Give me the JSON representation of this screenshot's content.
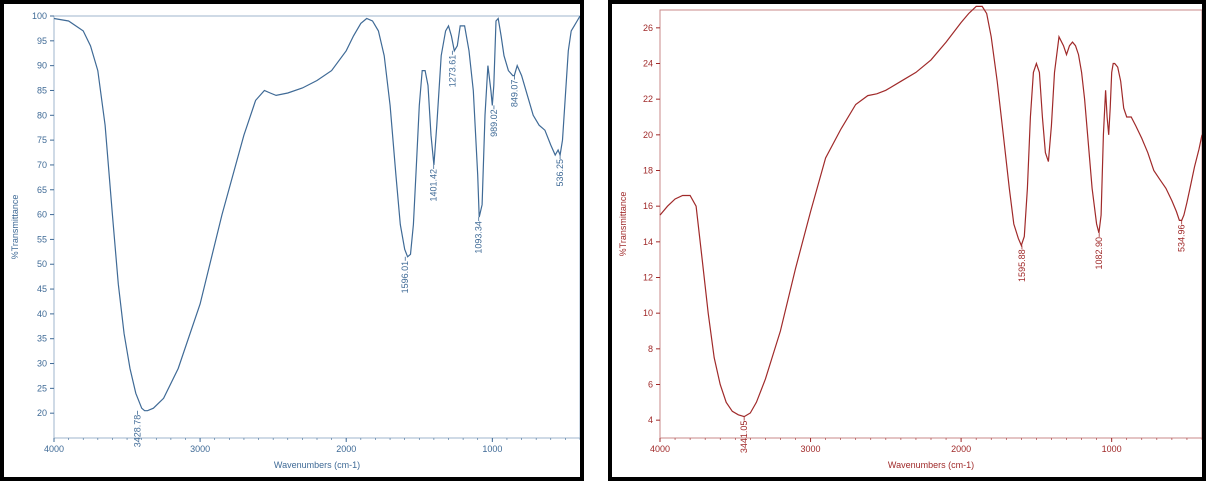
{
  "charts": {
    "chart_data": [
      {
        "type": "line",
        "title": "",
        "xlabel": "Wavenumbers (cm-1)",
        "ylabel": "%Transmittance",
        "xlim": [
          4000,
          400
        ],
        "ylim": [
          15,
          100
        ],
        "x_ticks": [
          4000,
          3000,
          2000,
          1000
        ],
        "y_ticks": [
          20,
          25,
          30,
          35,
          40,
          45,
          50,
          55,
          60,
          65,
          70,
          75,
          80,
          85,
          90,
          95,
          100
        ],
        "color": "#3f6a96",
        "grid": false,
        "peak_labels": [
          "3428.78",
          "1596.01",
          "1401.42",
          "1273.61",
          "1093.34",
          "989.02",
          "849.07",
          "536.25"
        ],
        "peak_x": [
          3428.78,
          1596.01,
          1401.42,
          1273.61,
          1093.34,
          989.02,
          849.07,
          536.25
        ],
        "peak_y": [
          20.5,
          51.5,
          70,
          93,
          59.5,
          82,
          88,
          72
        ],
        "x": [
          4000,
          3900,
          3800,
          3750,
          3700,
          3650,
          3600,
          3560,
          3520,
          3480,
          3440,
          3400,
          3380,
          3360,
          3320,
          3250,
          3150,
          3000,
          2850,
          2700,
          2620,
          2560,
          2520,
          2480,
          2400,
          2300,
          2200,
          2100,
          2000,
          1950,
          1900,
          1860,
          1820,
          1780,
          1740,
          1700,
          1660,
          1630,
          1600,
          1580,
          1560,
          1540,
          1520,
          1500,
          1480,
          1460,
          1440,
          1420,
          1400,
          1380,
          1350,
          1320,
          1300,
          1280,
          1260,
          1240,
          1220,
          1190,
          1160,
          1130,
          1100,
          1090,
          1070,
          1050,
          1030,
          1010,
          1000,
          990,
          975,
          960,
          940,
          920,
          890,
          860,
          850,
          830,
          800,
          760,
          720,
          680,
          640,
          600,
          570,
          550,
          536,
          520,
          500,
          480,
          460,
          440,
          420,
          400
        ],
        "y": [
          99.5,
          99,
          97,
          94,
          89,
          78,
          60,
          46,
          36,
          29,
          24,
          21,
          20.5,
          20.5,
          21,
          23,
          29,
          42,
          60,
          76,
          83,
          85,
          84.5,
          84,
          84.5,
          85.5,
          87,
          89,
          93,
          96,
          98.5,
          99.5,
          99,
          97,
          92,
          82,
          68,
          58,
          53,
          51.5,
          52,
          58,
          70,
          82,
          89,
          89,
          86,
          76,
          70,
          78,
          92,
          97,
          98,
          96,
          93,
          94,
          98,
          98,
          93,
          85,
          68,
          59.5,
          62,
          80,
          90,
          85,
          82,
          86,
          99,
          99.5,
          96,
          92,
          89,
          88,
          88,
          90,
          88,
          84,
          80,
          78,
          77,
          74,
          72,
          73,
          72,
          75,
          84,
          93,
          97,
          98,
          99,
          100
        ]
      },
      {
        "type": "line",
        "title": "",
        "xlabel": "Wavenumbers (cm-1)",
        "ylabel": "%Transmittance",
        "xlim": [
          4000,
          400
        ],
        "ylim": [
          3,
          27
        ],
        "x_ticks": [
          4000,
          3000,
          2000,
          1000
        ],
        "y_ticks": [
          4,
          6,
          8,
          10,
          12,
          14,
          16,
          18,
          20,
          22,
          24,
          26
        ],
        "color": "#a02a2a",
        "grid": false,
        "peak_labels": [
          "3441.05",
          "1595.88",
          "1082.90",
          "534.96"
        ],
        "peak_x": [
          3441.05,
          1595.88,
          1082.9,
          534.96
        ],
        "peak_y": [
          4.2,
          13.8,
          14.5,
          15.2
        ],
        "x": [
          4000,
          3950,
          3900,
          3850,
          3800,
          3760,
          3720,
          3680,
          3640,
          3600,
          3560,
          3520,
          3480,
          3441,
          3400,
          3360,
          3300,
          3200,
          3100,
          3000,
          2900,
          2800,
          2700,
          2620,
          2560,
          2500,
          2400,
          2300,
          2200,
          2100,
          2000,
          1950,
          1900,
          1860,
          1830,
          1800,
          1760,
          1720,
          1680,
          1650,
          1620,
          1600,
          1580,
          1560,
          1540,
          1520,
          1500,
          1480,
          1460,
          1440,
          1420,
          1400,
          1380,
          1350,
          1320,
          1300,
          1280,
          1260,
          1240,
          1220,
          1200,
          1180,
          1160,
          1130,
          1100,
          1085,
          1070,
          1055,
          1040,
          1030,
          1020,
          1010,
          1000,
          990,
          980,
          960,
          940,
          920,
          900,
          870,
          840,
          800,
          760,
          720,
          680,
          640,
          600,
          570,
          550,
          535,
          520,
          500,
          480,
          450,
          420,
          400
        ],
        "y": [
          15.5,
          16,
          16.4,
          16.6,
          16.6,
          16,
          13,
          10,
          7.5,
          6,
          5,
          4.5,
          4.3,
          4.2,
          4.4,
          5,
          6.3,
          9,
          12.5,
          15.7,
          18.7,
          20.3,
          21.7,
          22.2,
          22.3,
          22.5,
          23,
          23.5,
          24.2,
          25.2,
          26.3,
          26.8,
          27.2,
          27.2,
          26.8,
          25.5,
          23,
          20,
          17,
          15,
          14.2,
          13.8,
          14.3,
          17,
          21,
          23.5,
          24,
          23.5,
          21,
          19,
          18.5,
          20.5,
          23.5,
          25.5,
          25,
          24.5,
          25,
          25.2,
          25,
          24.5,
          23.5,
          22,
          20,
          17,
          15,
          14.5,
          15.5,
          20,
          22.5,
          21,
          20,
          21.5,
          23.5,
          24,
          24,
          23.8,
          23,
          21.5,
          21,
          21,
          20.5,
          19.8,
          19,
          18,
          17.5,
          17,
          16.3,
          15.7,
          15.2,
          15.2,
          15.5,
          16.2,
          17,
          18.2,
          19.2,
          20
        ]
      }
    ]
  }
}
